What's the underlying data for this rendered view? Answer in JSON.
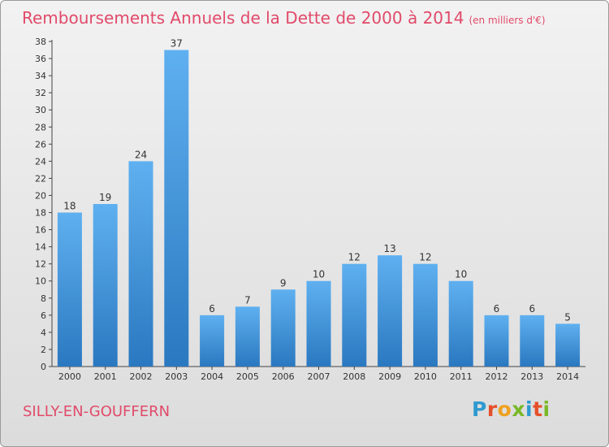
{
  "chart_data": {
    "type": "bar",
    "title": "Remboursements Annuels de la Dette de 2000 à 2014",
    "subtitle": "(en milliers d'€)",
    "categories": [
      "2000",
      "2001",
      "2002",
      "2003",
      "2004",
      "2005",
      "2006",
      "2007",
      "2008",
      "2009",
      "2010",
      "2011",
      "2012",
      "2013",
      "2014"
    ],
    "values": [
      18,
      19,
      24,
      37,
      6,
      7,
      9,
      10,
      12,
      13,
      12,
      10,
      6,
      6,
      5
    ],
    "ylim": [
      0,
      38
    ],
    "yticks": [
      0,
      2,
      4,
      6,
      8,
      10,
      12,
      14,
      16,
      18,
      20,
      22,
      24,
      26,
      28,
      30,
      32,
      34,
      36,
      38
    ],
    "grid": false,
    "bar_color": "#3a8fd8"
  },
  "footer": {
    "place": "SILLY-EN-GOUFFERN",
    "logo": "Proxiti"
  },
  "colors": {
    "title": "#e14a6a",
    "logo_letters": [
      "#2e9ad0",
      "#e5502a",
      "#f0a020",
      "#7ab828",
      "#2e9ad0",
      "#e5502a",
      "#7ab828"
    ]
  }
}
